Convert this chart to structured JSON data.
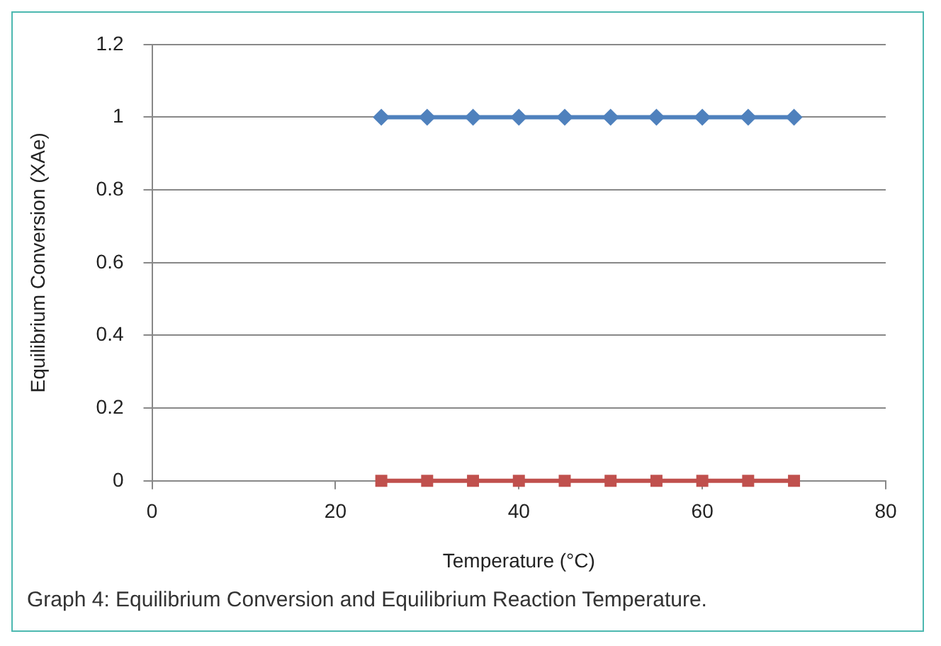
{
  "chart_data": {
    "type": "line",
    "xlabel": "Temperature (°C)",
    "ylabel": "Equilibrium Conversion (XAe)",
    "annotations": [
      "Graph 4: Equilibrium Conversion and Equilibrium Reaction Temperature."
    ],
    "x": [
      25,
      30,
      35,
      40,
      45,
      50,
      55,
      60,
      65,
      70
    ],
    "series": [
      {
        "color": "#4f81bd",
        "marker": "diamond",
        "values": [
          1,
          1,
          1,
          1,
          1,
          1,
          1,
          1,
          1,
          1
        ]
      },
      {
        "color": "#c0504d",
        "marker": "square",
        "values": [
          0,
          0,
          0,
          0,
          0,
          0,
          0,
          0,
          0,
          0
        ]
      }
    ],
    "xlim": [
      0,
      80
    ],
    "xticks": [
      0,
      20,
      40,
      60,
      80
    ],
    "ylim": [
      0,
      1.2
    ],
    "yticks": [
      0,
      0.2,
      0.4,
      0.6,
      0.8,
      1,
      1.2
    ],
    "grid": "y",
    "legend": false
  }
}
